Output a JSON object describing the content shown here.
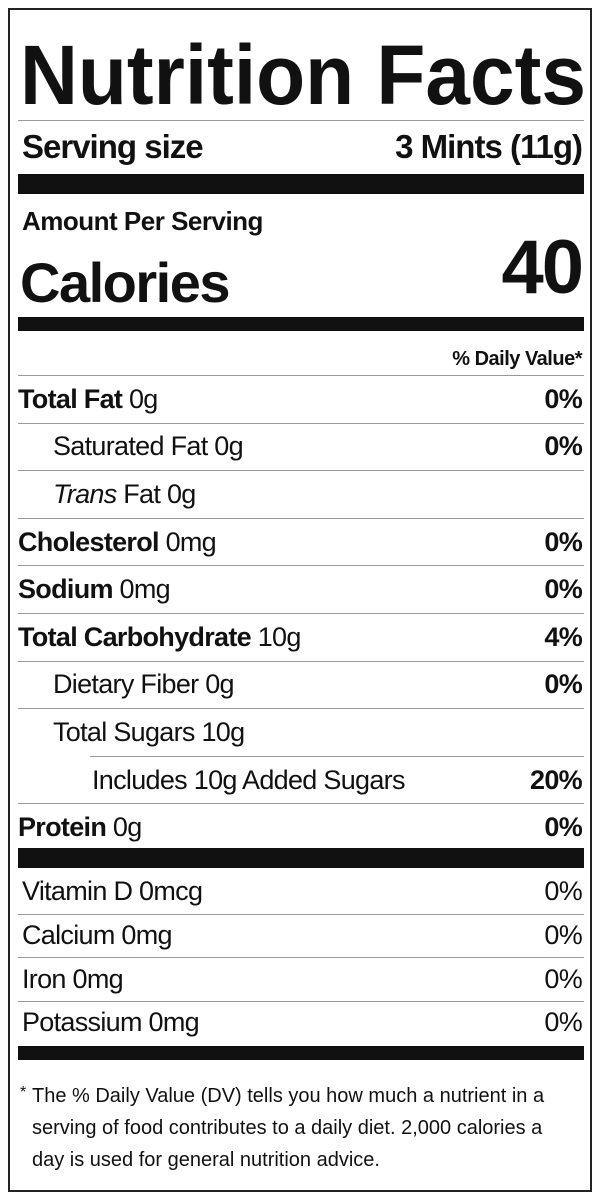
{
  "title": "Nutrition Facts",
  "serving": {
    "label": "Serving size",
    "value": "3 Mints (11g)"
  },
  "amount_per_serving": "Amount Per Serving",
  "calories": {
    "label": "Calories",
    "value": 40
  },
  "daily_value_header": "% Daily Value*",
  "nutrients": [
    {
      "name": "Total Fat",
      "amount": "0g",
      "dv": "0%",
      "sub": [
        {
          "name": "Saturated Fat",
          "amount": "0g",
          "dv": "0%"
        },
        {
          "prefix": "Trans",
          "name": "Fat",
          "amount": "0g"
        }
      ]
    },
    {
      "name": "Cholesterol",
      "amount": "0mg",
      "dv": "0%"
    },
    {
      "name": "Sodium",
      "amount": "0mg",
      "dv": "0%"
    },
    {
      "name": "Total Carbohydrate",
      "amount": "10g",
      "dv": "4%",
      "sub": [
        {
          "name": "Dietary Fiber",
          "amount": "0g",
          "dv": "0%"
        },
        {
          "name": "Total Sugars",
          "amount": "10g",
          "sub": [
            {
              "name": "Includes 10g Added Sugars",
              "dv": "20%"
            }
          ]
        }
      ]
    },
    {
      "name": "Protein",
      "amount": "0g",
      "dv": "0%"
    }
  ],
  "vitamins": [
    {
      "name": "Vitamin D 0mcg",
      "dv": "0%"
    },
    {
      "name": "Calcium 0mg",
      "dv": "0%"
    },
    {
      "name": "Iron 0mg",
      "dv": "0%"
    },
    {
      "name": "Potassium 0mg",
      "dv": "0%"
    }
  ],
  "footnote": {
    "mark": "*",
    "text": "The % Daily Value (DV) tells you how much a nutrient in a serving of food contributes to a daily diet. 2,000 calories a day is used for general nutrition advice."
  }
}
